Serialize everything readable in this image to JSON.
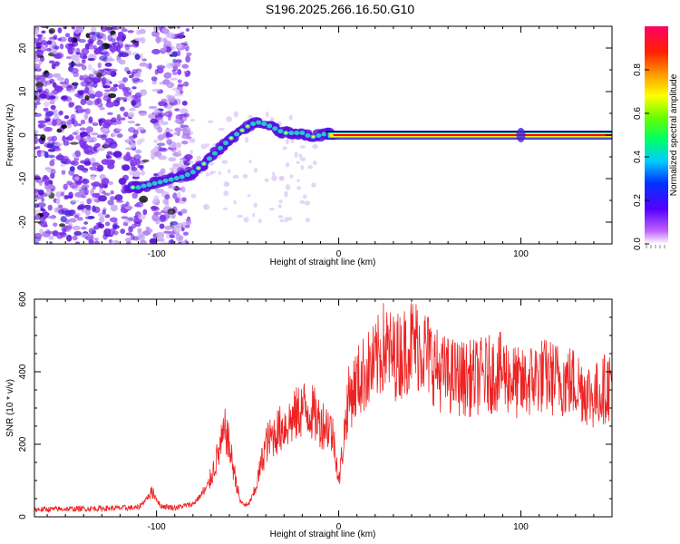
{
  "title": "S196.2025.266.16.50.G10",
  "colors": {
    "snr_line": "#ee2222",
    "track_core": "#ff0000",
    "scatter": "#8833ee",
    "scatter_light": "#c9a6f2",
    "frame": "#000000"
  },
  "chart_data": [
    {
      "type": "heatmap",
      "name": "spectrogram",
      "title": "",
      "xlabel": "Height of straight line (km)",
      "ylabel": "Frequency (Hz)",
      "xlim": [
        -167,
        150
      ],
      "ylim": [
        -25,
        25
      ],
      "xticks": [
        -100,
        0,
        100
      ],
      "yticks": [
        -20,
        -10,
        0,
        10,
        20
      ],
      "track": {
        "description": "dominant frequency vs height",
        "x": [
          -115,
          -110,
          -105,
          -100,
          -95,
          -90,
          -85,
          -80,
          -75,
          -70,
          -65,
          -60,
          -55,
          -50,
          -45,
          -40,
          -35,
          -30,
          -25,
          -20,
          -15,
          -10,
          -5,
          0,
          20,
          40,
          60,
          80,
          100,
          120,
          150
        ],
        "y": [
          -12,
          -12,
          -11.5,
          -11,
          -10.5,
          -10,
          -9.5,
          -8.5,
          -7,
          -5,
          -3,
          -1,
          0.5,
          2,
          3,
          2.5,
          1.5,
          0.5,
          0.5,
          0.5,
          -0.5,
          0,
          0.5,
          0,
          0,
          0,
          0,
          0,
          0,
          0,
          0
        ]
      },
      "colorbar": {
        "label": "Normalized spectral amplitude",
        "range": [
          0.0,
          1.0
        ],
        "ticks": [
          0.0,
          0.2,
          0.4,
          0.6,
          0.8
        ],
        "tick_labels": [
          "0.0",
          "0.2",
          "0.4",
          "0.6",
          "0.8"
        ]
      }
    },
    {
      "type": "line",
      "name": "snr",
      "title": "",
      "xlabel": "Height of straight line (km)",
      "ylabel": "SNR (10 * v/v)",
      "xlim": [
        -167,
        150
      ],
      "ylim": [
        0,
        600
      ],
      "xticks": [
        -100,
        0,
        100
      ],
      "yticks": [
        0,
        200,
        400,
        600
      ],
      "series": [
        {
          "name": "SNR",
          "x_anchor": [
            -167,
            -110,
            -102,
            -98,
            -90,
            -80,
            -72,
            -65,
            -62,
            -58,
            -54,
            -50,
            -46,
            -40,
            -35,
            -30,
            -25,
            -20,
            -15,
            -10,
            -5,
            -2,
            0,
            5,
            10,
            15,
            20,
            25,
            30,
            35,
            40,
            45,
            50,
            55,
            60,
            70,
            80,
            90,
            100,
            110,
            120,
            130,
            140,
            150
          ],
          "y_anchor": [
            20,
            25,
            70,
            30,
            25,
            35,
            80,
            190,
            240,
            140,
            40,
            30,
            70,
            200,
            230,
            250,
            270,
            300,
            290,
            260,
            250,
            200,
            90,
            320,
            370,
            400,
            420,
            470,
            440,
            450,
            480,
            470,
            440,
            400,
            390,
            380,
            390,
            400,
            360,
            390,
            380,
            370,
            330,
            370
          ]
        }
      ]
    }
  ]
}
